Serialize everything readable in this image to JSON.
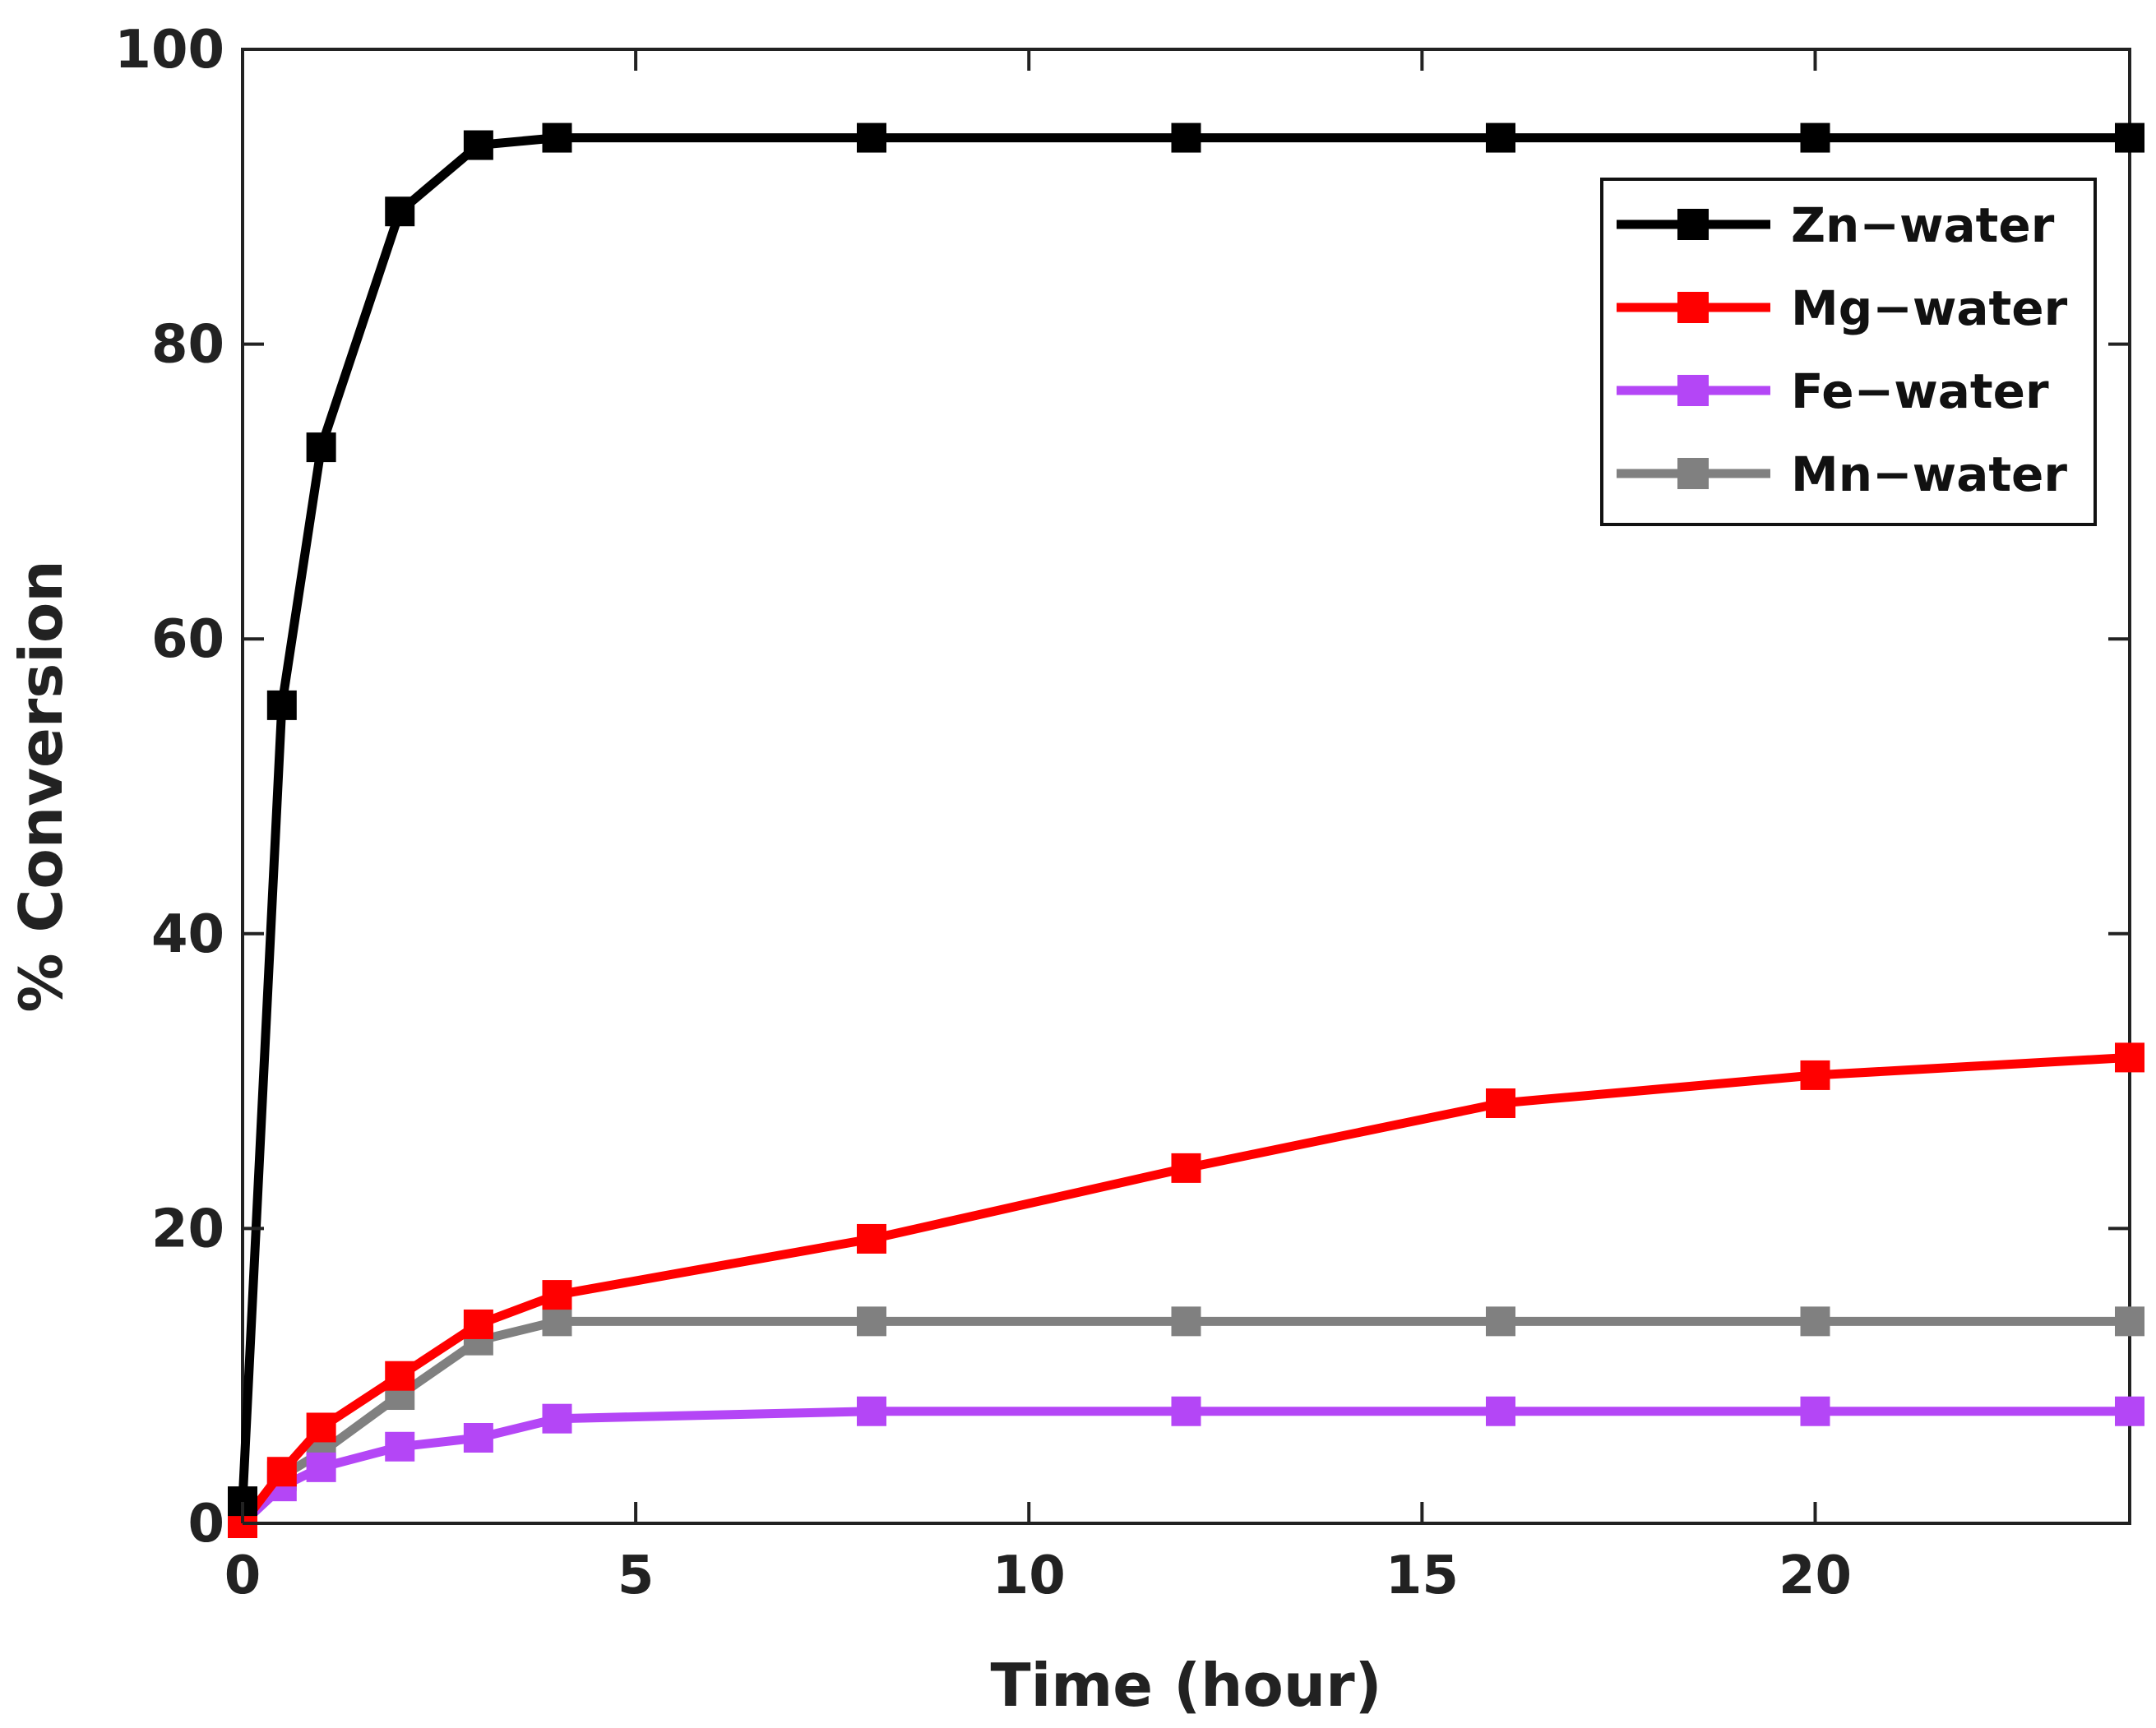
{
  "chart_data": {
    "type": "line",
    "title": "",
    "xlabel": "Time (hour)",
    "ylabel": "% Conversion",
    "xlim": [
      0,
      24
    ],
    "ylim": [
      0,
      100
    ],
    "xticks": [
      0,
      5,
      10,
      15,
      20
    ],
    "yticks": [
      0,
      20,
      40,
      60,
      80,
      100
    ],
    "grid": false,
    "legend_position": "top-right",
    "series": [
      {
        "name": "Zn−water",
        "color": "#000000",
        "x": [
          0,
          0.5,
          1,
          2,
          3,
          4,
          8,
          12,
          16,
          20,
          24
        ],
        "y": [
          1.5,
          55.5,
          73,
          89,
          93.5,
          94,
          94,
          94,
          94,
          94,
          94
        ]
      },
      {
        "name": "Mg−water",
        "color": "#ff0000",
        "x": [
          0,
          0.5,
          1,
          2,
          3,
          4,
          8,
          12,
          16,
          20,
          24
        ],
        "y": [
          0,
          3.5,
          6.5,
          10,
          13.5,
          15.5,
          19.3,
          24.1,
          28.5,
          30.4,
          31.6
        ]
      },
      {
        "name": "Fe−water",
        "color": "#b446f6",
        "x": [
          0,
          0.5,
          1,
          2,
          3,
          4,
          8,
          12,
          16,
          20,
          24
        ],
        "y": [
          0,
          2.5,
          3.8,
          5.2,
          5.8,
          7.1,
          7.6,
          7.6,
          7.6,
          7.6,
          7.6
        ]
      },
      {
        "name": "Mn−water",
        "color": "#808080",
        "x": [
          0,
          0.5,
          1,
          2,
          3,
          4,
          8,
          12,
          16,
          20,
          24
        ],
        "y": [
          0,
          3.2,
          4.8,
          8.7,
          12.4,
          13.7,
          13.7,
          13.7,
          13.7,
          13.7,
          13.7
        ]
      }
    ]
  }
}
